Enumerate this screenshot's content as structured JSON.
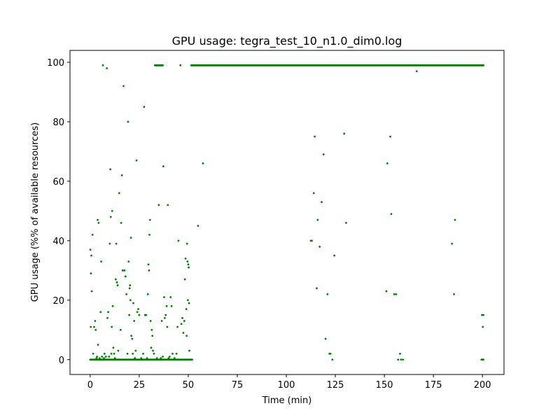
{
  "chart_data": {
    "type": "scatter",
    "title": "GPU usage: tegra_test_10_n1.0_dim0.log",
    "xlabel": "Time (min)",
    "ylabel": "GPU usage (%% of available resources)",
    "xlim": [
      -10.3,
      211
    ],
    "ylim": [
      -5,
      104
    ],
    "xticks": [
      0,
      25,
      50,
      75,
      100,
      125,
      150,
      175,
      200
    ],
    "yticks": [
      0,
      20,
      40,
      60,
      80,
      100
    ],
    "grid": false,
    "legend": "none",
    "marker_color": "#008000",
    "lines": [
      {
        "y": 0,
        "x_start": 0,
        "x_end": 52
      },
      {
        "y": 99,
        "x_start": 51.5,
        "x_end": 200.5
      },
      {
        "y": 99,
        "x_start": 33,
        "x_end": 37
      },
      {
        "y": 0,
        "x_start": 199.5,
        "x_end": 200.5
      }
    ],
    "points": [
      [
        0.1,
        37
      ],
      [
        0.3,
        11
      ],
      [
        0.4,
        29
      ],
      [
        0.6,
        35
      ],
      [
        0.8,
        23
      ],
      [
        1.2,
        42
      ],
      [
        1.5,
        2
      ],
      [
        2,
        11
      ],
      [
        2.5,
        13
      ],
      [
        2.8,
        10
      ],
      [
        3.2,
        0.5
      ],
      [
        3.5,
        1
      ],
      [
        3.8,
        47
      ],
      [
        4,
        5
      ],
      [
        4.3,
        46
      ],
      [
        4.8,
        0.5
      ],
      [
        5.3,
        16
      ],
      [
        5.6,
        33
      ],
      [
        6,
        1
      ],
      [
        6.5,
        99
      ],
      [
        7,
        0.5
      ],
      [
        7.3,
        2
      ],
      [
        8,
        1
      ],
      [
        8.5,
        98
      ],
      [
        8.8,
        14
      ],
      [
        9.2,
        16
      ],
      [
        9.6,
        1
      ],
      [
        10,
        39
      ],
      [
        10.3,
        64
      ],
      [
        10.5,
        48
      ],
      [
        10.8,
        2
      ],
      [
        11,
        11
      ],
      [
        11.2,
        50
      ],
      [
        11.5,
        18
      ],
      [
        11.8,
        4
      ],
      [
        12.2,
        2
      ],
      [
        12.6,
        0.5
      ],
      [
        13,
        27
      ],
      [
        13.3,
        39
      ],
      [
        13.6,
        26
      ],
      [
        14,
        25
      ],
      [
        14.3,
        3
      ],
      [
        14.8,
        56
      ],
      [
        15.5,
        10
      ],
      [
        15.8,
        46
      ],
      [
        16.2,
        62
      ],
      [
        16.6,
        30
      ],
      [
        17,
        92
      ],
      [
        17.5,
        30
      ],
      [
        18,
        28
      ],
      [
        18.5,
        22
      ],
      [
        19,
        2
      ],
      [
        19.3,
        80
      ],
      [
        19.6,
        33
      ],
      [
        19.9,
        15
      ],
      [
        20.1,
        24
      ],
      [
        20.3,
        25
      ],
      [
        20.5,
        20
      ],
      [
        20.8,
        41
      ],
      [
        21,
        8
      ],
      [
        21.4,
        7
      ],
      [
        21.7,
        2
      ],
      [
        22,
        19
      ],
      [
        22.4,
        13
      ],
      [
        22.8,
        0.5
      ],
      [
        23.2,
        3
      ],
      [
        23.6,
        67
      ],
      [
        24,
        16
      ],
      [
        24.5,
        17
      ],
      [
        25,
        15
      ],
      [
        26,
        0.5
      ],
      [
        27,
        2
      ],
      [
        27.5,
        85
      ],
      [
        28,
        15
      ],
      [
        28.5,
        15
      ],
      [
        29,
        0.5
      ],
      [
        29.4,
        22
      ],
      [
        29.7,
        32
      ],
      [
        30,
        30
      ],
      [
        30.2,
        42
      ],
      [
        30.5,
        47
      ],
      [
        30.8,
        13
      ],
      [
        31.1,
        4
      ],
      [
        31.4,
        10
      ],
      [
        31.7,
        8
      ],
      [
        32,
        3
      ],
      [
        32.5,
        2
      ],
      [
        34,
        0.5
      ],
      [
        35,
        52
      ],
      [
        36,
        0.5
      ],
      [
        36.5,
        13
      ],
      [
        37,
        1
      ],
      [
        37.3,
        65
      ],
      [
        37.7,
        21
      ],
      [
        38,
        14
      ],
      [
        38.5,
        15
      ],
      [
        39,
        18
      ],
      [
        39.3,
        11
      ],
      [
        39.6,
        52
      ],
      [
        40,
        0.5
      ],
      [
        40.5,
        1
      ],
      [
        41,
        21
      ],
      [
        41.5,
        18
      ],
      [
        42,
        2
      ],
      [
        43,
        0.5
      ],
      [
        44,
        2
      ],
      [
        44.5,
        11
      ],
      [
        45,
        40
      ],
      [
        46,
        99
      ],
      [
        46.5,
        12
      ],
      [
        47,
        14
      ],
      [
        47.5,
        9
      ],
      [
        48,
        13
      ],
      [
        48.3,
        27
      ],
      [
        48.6,
        34
      ],
      [
        49,
        17
      ],
      [
        49.2,
        8
      ],
      [
        49.4,
        39
      ],
      [
        49.6,
        33
      ],
      [
        49.8,
        20
      ],
      [
        50,
        32
      ],
      [
        50.2,
        31
      ],
      [
        50.4,
        19
      ],
      [
        50.6,
        3
      ],
      [
        57.5,
        66
      ],
      [
        55,
        45
      ],
      [
        112.5,
        40
      ],
      [
        113,
        40
      ],
      [
        114,
        56
      ],
      [
        114.5,
        75
      ],
      [
        115.5,
        24
      ],
      [
        116,
        47
      ],
      [
        117,
        38
      ],
      [
        118,
        53
      ],
      [
        119,
        69
      ],
      [
        120,
        7
      ],
      [
        121,
        22
      ],
      [
        122,
        2
      ],
      [
        122.5,
        2
      ],
      [
        123.5,
        0
      ],
      [
        124.5,
        35
      ],
      [
        129.5,
        76
      ],
      [
        130.5,
        46
      ],
      [
        151,
        23
      ],
      [
        151.5,
        66
      ],
      [
        153,
        75
      ],
      [
        153.5,
        49
      ],
      [
        155,
        22
      ],
      [
        156,
        22
      ],
      [
        157,
        0
      ],
      [
        158,
        2
      ],
      [
        158.5,
        0
      ],
      [
        159.5,
        0
      ],
      [
        166.5,
        97
      ],
      [
        184.5,
        39
      ],
      [
        185.5,
        22
      ],
      [
        186,
        47
      ],
      [
        199.8,
        15
      ],
      [
        200.2,
        11
      ],
      [
        200.5,
        15
      ]
    ]
  }
}
